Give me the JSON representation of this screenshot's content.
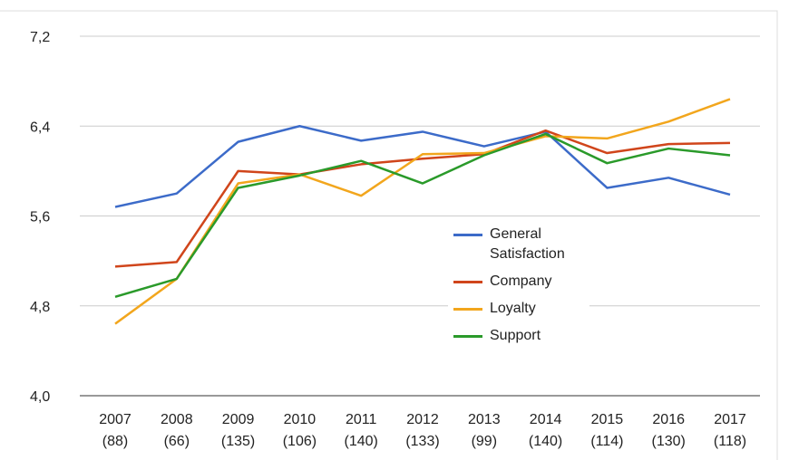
{
  "chart_data": {
    "type": "line",
    "categories": [
      [
        "2007",
        "(88)"
      ],
      [
        "2008",
        "(66)"
      ],
      [
        "2009",
        "(135)"
      ],
      [
        "2010",
        "(106)"
      ],
      [
        "2011",
        "(140)"
      ],
      [
        "2012",
        "(133)"
      ],
      [
        "2013",
        "(99)"
      ],
      [
        "2014",
        "(140)"
      ],
      [
        "2015",
        "(114)"
      ],
      [
        "2016",
        "(130)"
      ],
      [
        "2017",
        "(118)"
      ]
    ],
    "series": [
      {
        "name": "General Satisfaction",
        "color": "#3c6bc9",
        "values": [
          5.68,
          5.8,
          6.26,
          6.4,
          6.27,
          6.35,
          6.22,
          6.35,
          5.85,
          5.94,
          5.79
        ]
      },
      {
        "name": "Company",
        "color": "#d0451b",
        "values": [
          5.15,
          5.19,
          6.0,
          5.97,
          6.06,
          6.11,
          6.15,
          6.36,
          6.16,
          6.24,
          6.25
        ]
      },
      {
        "name": "Loyalty",
        "color": "#f2a61d",
        "values": [
          4.64,
          5.04,
          5.89,
          5.97,
          5.78,
          6.15,
          6.16,
          6.31,
          6.29,
          6.44,
          6.64
        ]
      },
      {
        "name": "Support",
        "color": "#2a9a2a",
        "values": [
          4.88,
          5.04,
          5.85,
          5.96,
          6.09,
          5.89,
          6.14,
          6.33,
          6.07,
          6.2,
          6.14
        ]
      }
    ],
    "ylim": [
      4.0,
      7.2
    ],
    "yticks": [
      {
        "value": 4.0,
        "label": "4,0"
      },
      {
        "value": 4.8,
        "label": "4,8"
      },
      {
        "value": 5.6,
        "label": "5,6"
      },
      {
        "value": 6.4,
        "label": "6,4"
      },
      {
        "value": 7.2,
        "label": "7,2"
      }
    ],
    "grid": true
  }
}
